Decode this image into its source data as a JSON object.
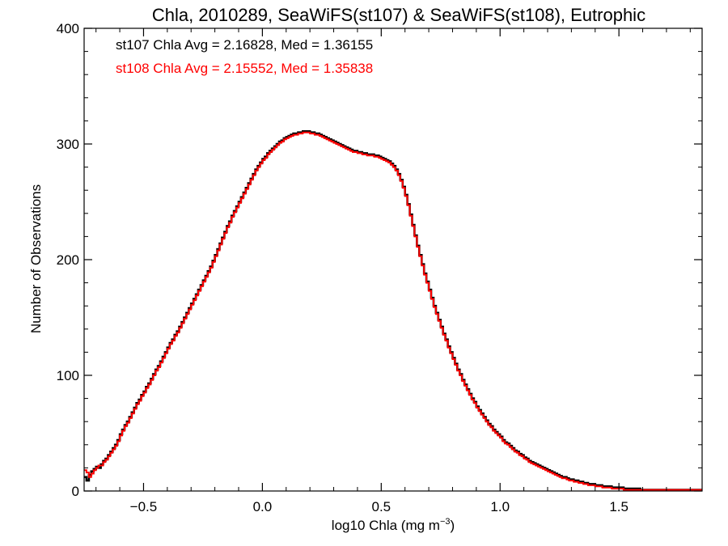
{
  "chart_data": {
    "type": "histogram-step",
    "title": "Chla, 2010289, SeaWiFS(st107) & SeaWiFS(st108), Eutrophic",
    "xlabel": "log10 Chla (mg m",
    "xlabel_sup": "−3",
    "xlabel_close": ")",
    "ylabel": "Number of Observations",
    "xlim": [
      -0.75,
      1.85
    ],
    "ylim": [
      0,
      400
    ],
    "x_ticks": [
      -0.5,
      0.0,
      0.5,
      1.0,
      1.5
    ],
    "x_tick_labels": [
      "−0.5",
      "0.0",
      "0.5",
      "1.0",
      "1.5"
    ],
    "y_ticks": [
      0,
      100,
      200,
      300,
      400
    ],
    "y_tick_labels": [
      "0",
      "100",
      "200",
      "300",
      "400"
    ],
    "annotations": [
      {
        "text": "st107 Chla Avg = 2.16828, Med = 1.36155",
        "color": "#000000"
      },
      {
        "text": "st108 Chla Avg = 2.15552, Med = 1.35838",
        "color": "#ff0000"
      }
    ],
    "bin_width": 0.01,
    "x_start": -0.75,
    "series": [
      {
        "name": "st107",
        "color": "#000000",
        "values": [
          12,
          9,
          14,
          17,
          19,
          21,
          20,
          23,
          26,
          28,
          31,
          34,
          37,
          40,
          44,
          49,
          53,
          57,
          60,
          64,
          68,
          72,
          76,
          79,
          83,
          86,
          90,
          93,
          97,
          101,
          105,
          108,
          112,
          116,
          120,
          124,
          128,
          131,
          135,
          138,
          142,
          146,
          150,
          154,
          158,
          162,
          166,
          170,
          174,
          178,
          182,
          186,
          190,
          194,
          199,
          204,
          209,
          214,
          219,
          224,
          229,
          233,
          238,
          242,
          246,
          250,
          254,
          258,
          262,
          266,
          270,
          274,
          278,
          281,
          284,
          287,
          289,
          292,
          294,
          296,
          298,
          300,
          302,
          303,
          305,
          306,
          307,
          308,
          309,
          309,
          310,
          310,
          311,
          311,
          311,
          310,
          310,
          309,
          309,
          308,
          307,
          306,
          305,
          304,
          303,
          302,
          301,
          300,
          299,
          298,
          297,
          296,
          295,
          294,
          294,
          293,
          293,
          292,
          292,
          291,
          291,
          291,
          290,
          290,
          289,
          288,
          287,
          286,
          285,
          283,
          281,
          278,
          274,
          269,
          263,
          256,
          248,
          239,
          230,
          221,
          212,
          204,
          196,
          188,
          181,
          174,
          167,
          160,
          154,
          148,
          142,
          136,
          131,
          125,
          120,
          115,
          110,
          105,
          101,
          96,
          92,
          88,
          84,
          80,
          77,
          73,
          70,
          67,
          64,
          61,
          58,
          56,
          53,
          51,
          49,
          47,
          44,
          42,
          41,
          39,
          37,
          35,
          34,
          32,
          31,
          29,
          28,
          26,
          25,
          24,
          23,
          22,
          21,
          20,
          19,
          18,
          17,
          16,
          15,
          14,
          13,
          12,
          12,
          11,
          10,
          10,
          9,
          9,
          8,
          8,
          7,
          7,
          6,
          6,
          6,
          5,
          5,
          5,
          4,
          4,
          4,
          4,
          3,
          3,
          3,
          3,
          3,
          2,
          2,
          2,
          2,
          2,
          2,
          2,
          1,
          1,
          1,
          1,
          1,
          1,
          1,
          1,
          1,
          1,
          1,
          1,
          1,
          1,
          1,
          1,
          1,
          1,
          1,
          1,
          1,
          1,
          1,
          1,
          1,
          1
        ]
      },
      {
        "name": "st108",
        "color": "#ff0000",
        "values": [
          18,
          16,
          12,
          15,
          18,
          20,
          22,
          22,
          25,
          27,
          30,
          33,
          36,
          39,
          43,
          48,
          52,
          56,
          59,
          63,
          67,
          71,
          75,
          78,
          82,
          85,
          89,
          92,
          96,
          100,
          104,
          107,
          111,
          115,
          119,
          123,
          127,
          130,
          134,
          137,
          141,
          145,
          149,
          153,
          157,
          161,
          165,
          169,
          173,
          177,
          181,
          185,
          189,
          193,
          198,
          203,
          208,
          213,
          218,
          223,
          228,
          232,
          237,
          241,
          245,
          249,
          253,
          257,
          261,
          265,
          269,
          273,
          277,
          280,
          283,
          286,
          288,
          291,
          293,
          295,
          297,
          299,
          301,
          302,
          304,
          305,
          306,
          307,
          308,
          308,
          309,
          309,
          310,
          310,
          310,
          309,
          309,
          308,
          308,
          307,
          306,
          305,
          304,
          303,
          302,
          301,
          300,
          299,
          298,
          297,
          296,
          295,
          294,
          293,
          293,
          292,
          292,
          291,
          291,
          290,
          290,
          290,
          289,
          289,
          288,
          287,
          286,
          285,
          284,
          282,
          280,
          277,
          273,
          268,
          262,
          255,
          247,
          238,
          229,
          220,
          211,
          203,
          195,
          187,
          180,
          173,
          166,
          159,
          153,
          147,
          141,
          135,
          130,
          124,
          119,
          114,
          109,
          104,
          100,
          95,
          91,
          87,
          83,
          79,
          76,
          72,
          69,
          66,
          63,
          60,
          57,
          55,
          52,
          50,
          48,
          46,
          43,
          41,
          40,
          38,
          36,
          34,
          33,
          31,
          30,
          28,
          27,
          25,
          24,
          23,
          22,
          21,
          20,
          19,
          18,
          17,
          16,
          15,
          14,
          13,
          12,
          11,
          11,
          10,
          9,
          9,
          8,
          8,
          7,
          7,
          6,
          6,
          5,
          5,
          5,
          4,
          4,
          4,
          3,
          3,
          3,
          3,
          2,
          2,
          2,
          2,
          2,
          1,
          1,
          1,
          1,
          1,
          1,
          1,
          1,
          1,
          1,
          1,
          1,
          1,
          1,
          1,
          1,
          1,
          1,
          1,
          1,
          1,
          1,
          1,
          1,
          1,
          1,
          1,
          1,
          1,
          1,
          1,
          1,
          1
        ]
      }
    ]
  }
}
